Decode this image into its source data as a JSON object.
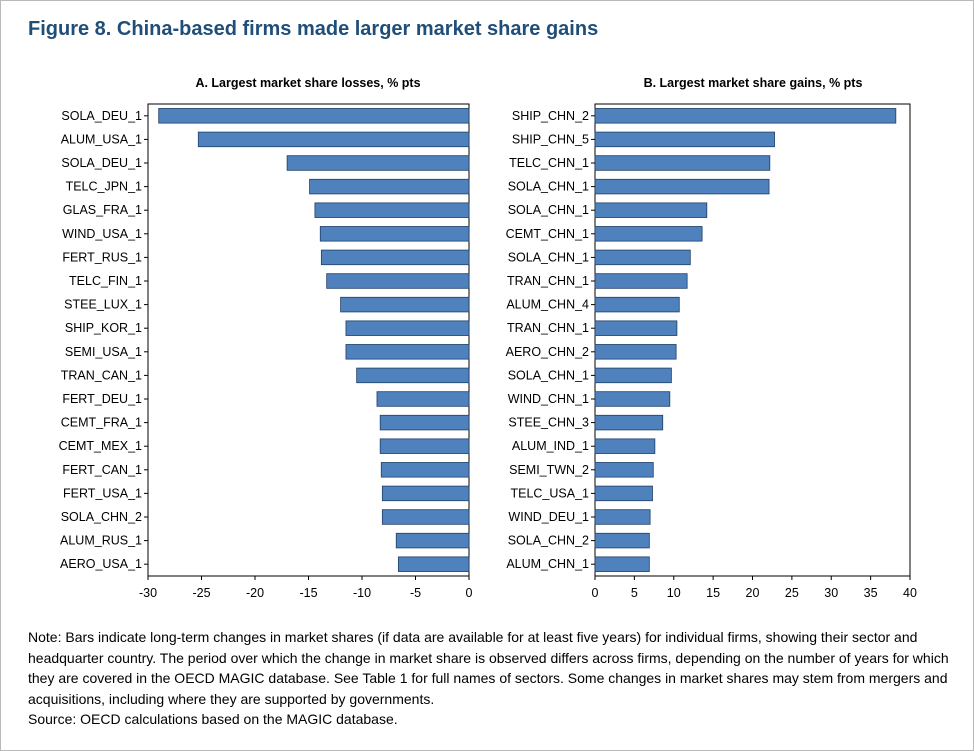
{
  "figure_title": "Figure 8. China-based firms made larger market share gains",
  "note": "Note: Bars indicate long-term changes in market shares (if data are available for at least five years) for individual firms, showing their sector and headquarter country. The period over which the change in market share is observed differs across firms, depending on the number of years for which they are covered in the OECD MAGIC database. See Table 1 for full names of sectors. Some changes in market shares may stem from mergers and acquisitions, including where they are supported by governments.",
  "source": "Source: OECD calculations based on the MAGIC database.",
  "colors": {
    "bar": "#4f81bd",
    "bar_edge": "#1f3f66",
    "axis": "#000000",
    "title": "#1f4e79"
  },
  "chart_data": [
    {
      "type": "bar",
      "orientation": "horizontal",
      "title": "A. Largest market share losses, % pts",
      "xlim": [
        -30,
        0
      ],
      "xticks": [
        -30,
        -25,
        -20,
        -15,
        -10,
        -5,
        0
      ],
      "grid": false,
      "categories": [
        "SOLA_DEU_1",
        "ALUM_USA_1",
        "SOLA_DEU_1",
        "TELC_JPN_1",
        "GLAS_FRA_1",
        "WIND_USA_1",
        "FERT_RUS_1",
        "TELC_FIN_1",
        "STEE_LUX_1",
        "SHIP_KOR_1",
        "SEMI_USA_1",
        "TRAN_CAN_1",
        "FERT_DEU_1",
        "CEMT_FRA_1",
        "CEMT_MEX_1",
        "FERT_CAN_1",
        "FERT_USA_1",
        "SOLA_CHN_2",
        "ALUM_RUS_1",
        "AERO_USA_1"
      ],
      "values": [
        -29.0,
        -25.3,
        -17.0,
        -14.9,
        -14.4,
        -13.9,
        -13.8,
        -13.3,
        -12.0,
        -11.5,
        -11.5,
        -10.5,
        -8.6,
        -8.3,
        -8.3,
        -8.2,
        -8.1,
        -8.1,
        -6.8,
        -6.6
      ]
    },
    {
      "type": "bar",
      "orientation": "horizontal",
      "title": "B. Largest market share gains, % pts",
      "xlim": [
        0,
        40
      ],
      "xticks": [
        0,
        5,
        10,
        15,
        20,
        25,
        30,
        35,
        40
      ],
      "grid": false,
      "categories": [
        "SHIP_CHN_2",
        "SHIP_CHN_5",
        "TELC_CHN_1",
        "SOLA_CHN_1",
        "SOLA_CHN_1",
        "CEMT_CHN_1",
        "SOLA_CHN_1",
        "TRAN_CHN_1",
        "ALUM_CHN_4",
        "TRAN_CHN_1",
        "AERO_CHN_2",
        "SOLA_CHN_1",
        "WIND_CHN_1",
        "STEE_CHN_3",
        "ALUM_IND_1",
        "SEMI_TWN_2",
        "TELC_USA_1",
        "WIND_DEU_1",
        "SOLA_CHN_2",
        "ALUM_CHN_1"
      ],
      "values": [
        38.2,
        22.8,
        22.2,
        22.1,
        14.2,
        13.6,
        12.1,
        11.7,
        10.7,
        10.4,
        10.3,
        9.7,
        9.5,
        8.6,
        7.6,
        7.4,
        7.3,
        7.0,
        6.9,
        6.9
      ]
    }
  ]
}
